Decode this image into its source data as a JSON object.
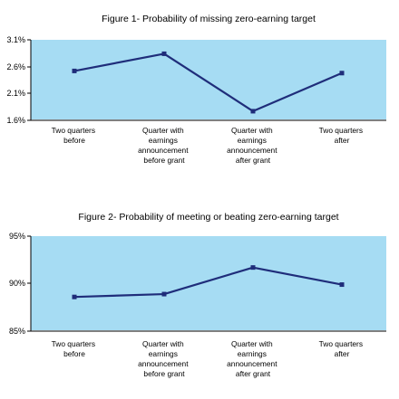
{
  "chart_data": [
    {
      "type": "line",
      "title": "Figure 1- Probability of missing zero-earning target",
      "categories": [
        [
          "Two quarters",
          "before"
        ],
        [
          "Quarter with",
          "earnings",
          "announcement",
          "before grant"
        ],
        [
          "Quarter with",
          "earnings",
          "announcement",
          "after grant"
        ],
        [
          "Two quarters",
          "after"
        ]
      ],
      "yticks": [
        "3.1%",
        "2.6%",
        "2.1%",
        "1.6%"
      ],
      "ylim": [
        1.6,
        3.1
      ],
      "values": [
        2.52,
        2.84,
        1.77,
        2.48
      ],
      "grid": false,
      "colors": {
        "plot_bg": "#a6dcf3",
        "line": "#1f2d7a",
        "axis": "#000000"
      }
    },
    {
      "type": "line",
      "title": "Figure 2- Probability of meeting or beating zero-earning target",
      "categories": [
        [
          "Two quarters",
          "before"
        ],
        [
          "Quarter with",
          "earnings",
          "announcement",
          "before grant"
        ],
        [
          "Quarter with",
          "earnings",
          "announcement",
          "after grant"
        ],
        [
          "Two quarters",
          "after"
        ]
      ],
      "yticks": [
        "95%",
        "90%",
        "85%"
      ],
      "ylim": [
        85,
        95
      ],
      "values": [
        88.6,
        88.9,
        91.7,
        89.9
      ],
      "grid": false,
      "colors": {
        "plot_bg": "#a6dcf3",
        "line": "#1f2d7a",
        "axis": "#000000"
      }
    }
  ]
}
